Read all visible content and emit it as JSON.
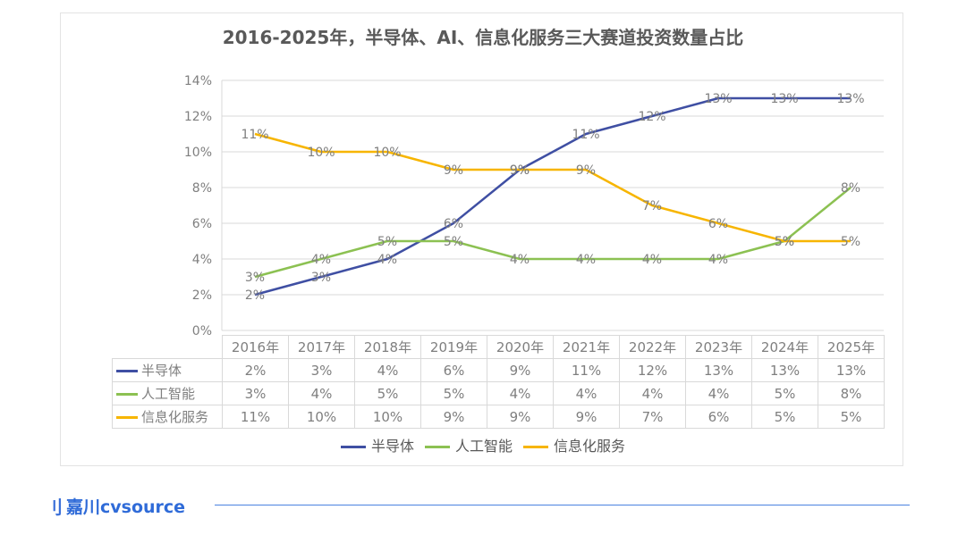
{
  "chart_data": {
    "type": "line",
    "title": "2016-2025年，半导体、AI、信息化服务三大赛道投资数量占比",
    "categories": [
      "2016年",
      "2017年",
      "2018年",
      "2019年",
      "2020年",
      "2021年",
      "2022年",
      "2023年",
      "2024年",
      "2025年"
    ],
    "ylim": [
      0,
      14
    ],
    "yticks": [
      "0%",
      "2%",
      "4%",
      "6%",
      "8%",
      "10%",
      "12%",
      "14%"
    ],
    "grid": true,
    "legend_position": "bottom",
    "series": [
      {
        "name": "半导体",
        "color": "#3f4fa3",
        "values": [
          2,
          3,
          4,
          6,
          9,
          11,
          12,
          13,
          13,
          13
        ],
        "labels": [
          "2%",
          "3%",
          "4%",
          "6%",
          "9%",
          "11%",
          "12%",
          "13%",
          "13%",
          "13%"
        ]
      },
      {
        "name": "人工智能",
        "color": "#8cc152",
        "values": [
          3,
          4,
          5,
          5,
          4,
          4,
          4,
          4,
          5,
          8
        ],
        "labels": [
          "3%",
          "4%",
          "5%",
          "5%",
          "4%",
          "4%",
          "4%",
          "4%",
          "5%",
          "8%"
        ]
      },
      {
        "name": "信息化服务",
        "color": "#f7b500",
        "values": [
          11,
          10,
          10,
          9,
          9,
          9,
          7,
          6,
          5,
          5
        ],
        "labels": [
          "11%",
          "10%",
          "10%",
          "9%",
          "9%",
          "9%",
          "7%",
          "6%",
          "5%",
          "5%"
        ]
      }
    ]
  },
  "footer": {
    "logo_mark": "刂",
    "logo_text": "嘉川cvsource"
  }
}
